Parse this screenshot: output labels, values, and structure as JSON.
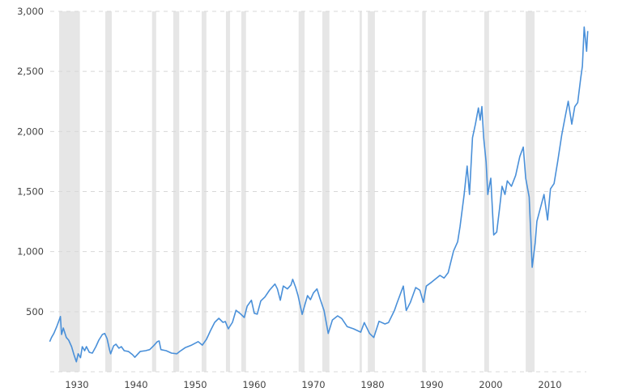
{
  "chart_data": {
    "type": "line",
    "title": "",
    "xlabel": "",
    "ylabel": "",
    "xlim": [
      1925.4,
      2016.6
    ],
    "ylim": [
      0,
      3000
    ],
    "grid": "horizontal-dashed",
    "legend": "none",
    "x_ticks": [
      1930,
      1940,
      1950,
      1960,
      1970,
      1980,
      1990,
      2000,
      2010
    ],
    "x_tick_labels": [
      "1930",
      "1940",
      "1950",
      "1960",
      "1970",
      "1980",
      "1990",
      "2000",
      "2010"
    ],
    "y_ticks": [
      0,
      500,
      1000,
      1500,
      2000,
      2500,
      3000
    ],
    "y_tick_labels": [
      "",
      "500",
      "1,000",
      "1,500",
      "2,000",
      "2,500",
      "3,000"
    ],
    "colors": {
      "line": "#4a90d9",
      "shaded_band": "#e6e6e6",
      "grid": "#d8d8d8"
    },
    "shaded_bands": [
      [
        1927.0,
        1930.5
      ],
      [
        1934.8,
        1935.9
      ],
      [
        1942.7,
        1943.4
      ],
      [
        1946.3,
        1947.3
      ],
      [
        1951.1,
        1951.9
      ],
      [
        1955.2,
        1955.9
      ],
      [
        1957.8,
        1958.6
      ],
      [
        1967.5,
        1968.5
      ],
      [
        1971.5,
        1972.7
      ],
      [
        1977.8,
        1978.2
      ],
      [
        1979.2,
        1980.4
      ],
      [
        1988.4,
        1989.0
      ],
      [
        1998.9,
        1999.7
      ],
      [
        2005.9,
        2007.4
      ]
    ],
    "series": [
      {
        "points": [
          [
            1925.4,
            251
          ],
          [
            1925.7,
            285
          ],
          [
            1926.1,
            319
          ],
          [
            1926.6,
            378
          ],
          [
            1927.0,
            431
          ],
          [
            1927.2,
            460
          ],
          [
            1927.4,
            310
          ],
          [
            1927.7,
            364
          ],
          [
            1928.2,
            285
          ],
          [
            1928.6,
            263
          ],
          [
            1929.1,
            209
          ],
          [
            1929.5,
            142
          ],
          [
            1929.9,
            83
          ],
          [
            1930.2,
            150
          ],
          [
            1930.6,
            117
          ],
          [
            1930.9,
            209
          ],
          [
            1931.3,
            175
          ],
          [
            1931.6,
            209
          ],
          [
            1932.1,
            162
          ],
          [
            1932.6,
            155
          ],
          [
            1933.2,
            209
          ],
          [
            1933.7,
            263
          ],
          [
            1934.3,
            310
          ],
          [
            1934.7,
            319
          ],
          [
            1935.1,
            276
          ],
          [
            1935.5,
            184
          ],
          [
            1935.7,
            150
          ],
          [
            1936.2,
            216
          ],
          [
            1936.6,
            229
          ],
          [
            1937.1,
            196
          ],
          [
            1937.5,
            209
          ],
          [
            1938.0,
            175
          ],
          [
            1938.7,
            169
          ],
          [
            1939.4,
            142
          ],
          [
            1939.8,
            121
          ],
          [
            1940.7,
            169
          ],
          [
            1941.6,
            175
          ],
          [
            1942.3,
            184
          ],
          [
            1943.0,
            218
          ],
          [
            1943.6,
            251
          ],
          [
            1943.9,
            256
          ],
          [
            1944.2,
            184
          ],
          [
            1945.1,
            175
          ],
          [
            1946.0,
            155
          ],
          [
            1946.9,
            150
          ],
          [
            1947.4,
            169
          ],
          [
            1948.3,
            200
          ],
          [
            1949.4,
            222
          ],
          [
            1950.5,
            251
          ],
          [
            1951.2,
            222
          ],
          [
            1951.9,
            270
          ],
          [
            1952.6,
            344
          ],
          [
            1953.3,
            411
          ],
          [
            1954.0,
            445
          ],
          [
            1954.7,
            411
          ],
          [
            1955.1,
            418
          ],
          [
            1955.6,
            357
          ],
          [
            1956.3,
            411
          ],
          [
            1956.9,
            512
          ],
          [
            1957.6,
            485
          ],
          [
            1958.3,
            452
          ],
          [
            1958.8,
            546
          ],
          [
            1959.5,
            595
          ],
          [
            1960.0,
            487
          ],
          [
            1960.5,
            479
          ],
          [
            1961.1,
            589
          ],
          [
            1961.8,
            622
          ],
          [
            1962.6,
            681
          ],
          [
            1963.5,
            730
          ],
          [
            1963.9,
            690
          ],
          [
            1964.4,
            595
          ],
          [
            1964.9,
            713
          ],
          [
            1965.6,
            690
          ],
          [
            1966.2,
            723
          ],
          [
            1966.5,
            769
          ],
          [
            1967.0,
            701
          ],
          [
            1967.4,
            634
          ],
          [
            1968.1,
            477
          ],
          [
            1968.6,
            566
          ],
          [
            1969.0,
            634
          ],
          [
            1969.5,
            600
          ],
          [
            1970.0,
            656
          ],
          [
            1970.6,
            690
          ],
          [
            1971.1,
            611
          ],
          [
            1971.8,
            510
          ],
          [
            1972.5,
            319
          ],
          [
            1973.2,
            431
          ],
          [
            1974.1,
            465
          ],
          [
            1974.8,
            443
          ],
          [
            1975.7,
            376
          ],
          [
            1976.8,
            357
          ],
          [
            1978.0,
            330
          ],
          [
            1978.6,
            409
          ],
          [
            1979.5,
            319
          ],
          [
            1980.2,
            285
          ],
          [
            1981.1,
            420
          ],
          [
            1982.1,
            398
          ],
          [
            1982.7,
            409
          ],
          [
            1983.7,
            510
          ],
          [
            1984.1,
            566
          ],
          [
            1985.2,
            713
          ],
          [
            1985.7,
            510
          ],
          [
            1986.4,
            578
          ],
          [
            1987.3,
            701
          ],
          [
            1988.0,
            679
          ],
          [
            1988.6,
            578
          ],
          [
            1989.1,
            713
          ],
          [
            1990.0,
            746
          ],
          [
            1991.4,
            802
          ],
          [
            1992.1,
            780
          ],
          [
            1992.8,
            825
          ],
          [
            1993.7,
            1005
          ],
          [
            1994.4,
            1083
          ],
          [
            1994.8,
            1207
          ],
          [
            1995.5,
            1476
          ],
          [
            1996.0,
            1712
          ],
          [
            1996.4,
            1476
          ],
          [
            1996.9,
            1948
          ],
          [
            1997.4,
            2061
          ],
          [
            1997.9,
            2196
          ],
          [
            1998.2,
            2095
          ],
          [
            1998.5,
            2207
          ],
          [
            1998.8,
            1948
          ],
          [
            1999.2,
            1746
          ],
          [
            1999.5,
            1476
          ],
          [
            2000.0,
            1611
          ],
          [
            2000.5,
            1139
          ],
          [
            2001.0,
            1162
          ],
          [
            2001.5,
            1364
          ],
          [
            2001.9,
            1544
          ],
          [
            2002.4,
            1476
          ],
          [
            2002.8,
            1589
          ],
          [
            2003.5,
            1544
          ],
          [
            2004.2,
            1634
          ],
          [
            2004.9,
            1791
          ],
          [
            2005.5,
            1870
          ],
          [
            2005.9,
            1611
          ],
          [
            2006.5,
            1454
          ],
          [
            2007.0,
            870
          ],
          [
            2007.5,
            1072
          ],
          [
            2007.8,
            1252
          ],
          [
            2008.4,
            1364
          ],
          [
            2009.0,
            1476
          ],
          [
            2009.6,
            1263
          ],
          [
            2010.1,
            1522
          ],
          [
            2010.7,
            1566
          ],
          [
            2011.3,
            1746
          ],
          [
            2012.0,
            1971
          ],
          [
            2012.6,
            2128
          ],
          [
            2013.1,
            2252
          ],
          [
            2013.7,
            2061
          ],
          [
            2014.2,
            2207
          ],
          [
            2014.7,
            2240
          ],
          [
            2015.2,
            2443
          ],
          [
            2015.5,
            2544
          ],
          [
            2015.8,
            2870
          ],
          [
            2016.2,
            2668
          ],
          [
            2016.4,
            2836
          ]
        ]
      }
    ]
  }
}
